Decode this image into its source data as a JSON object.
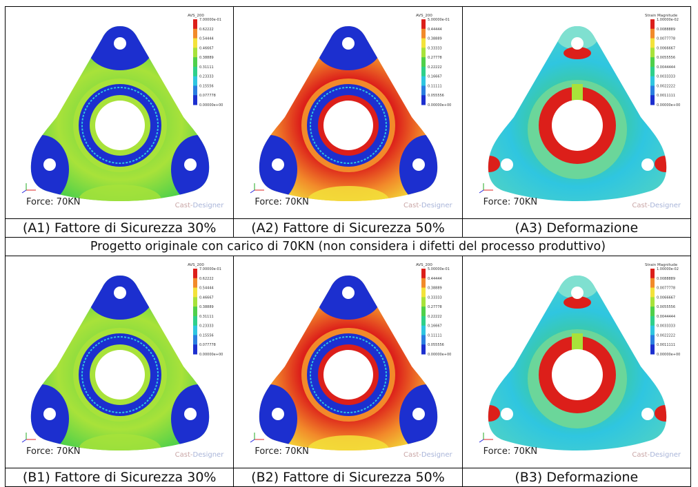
{
  "rows": [
    {
      "id": "A",
      "panels": [
        {
          "caption": "(A1) Fattore di Sicurezza 30%",
          "force": "Force: 70KN",
          "brand": "Cast-Designer",
          "legend_title": "AVS_200",
          "legend_values": [
            "7.00000e-01",
            "0.62222",
            "0.54444",
            "0.46667",
            "0.38889",
            "0.31111",
            "0.23333",
            "0.15556",
            "0.077778",
            "0.00000e+00"
          ],
          "variant": "sf30"
        },
        {
          "caption": "(A2) Fattore di Sicurezza 50%",
          "force": "Force: 70KN",
          "brand": "Cast-Designer",
          "legend_title": "AVS_200",
          "legend_values": [
            "5.00000e-01",
            "0.44444",
            "0.38889",
            "0.33333",
            "0.27778",
            "0.22222",
            "0.16667",
            "0.11111",
            "0.055556",
            "0.00000e+00"
          ],
          "variant": "sf50"
        },
        {
          "caption": "(A3) Deformazione",
          "force": "Force: 70KN",
          "brand": "Cast-Designer",
          "legend_title": "Strain  Magnitude",
          "legend_values": [
            "1.00000e-02",
            "0.0088889",
            "0.0077778",
            "0.0066667",
            "0.0055556",
            "0.0044444",
            "0.0033333",
            "0.0022222",
            "0.0011111",
            "0.00000e+00"
          ],
          "variant": "strain"
        }
      ]
    },
    {
      "id": "B",
      "panels": [
        {
          "caption": "(B1) Fattore di Sicurezza 30%",
          "force": "Force: 70KN",
          "brand": "Cast-Designer",
          "legend_title": "AVS_200",
          "legend_values": [
            "7.00000e-01",
            "0.62222",
            "0.54444",
            "0.46667",
            "0.38889",
            "0.31111",
            "0.23333",
            "0.15556",
            "0.077778",
            "0.00000e+00"
          ],
          "variant": "sf30"
        },
        {
          "caption": "(B2) Fattore di Sicurezza 50%",
          "force": "Force: 70KN",
          "brand": "Cast-Designer",
          "legend_title": "AVS_200",
          "legend_values": [
            "5.00000e-01",
            "0.44444",
            "0.38889",
            "0.33333",
            "0.27778",
            "0.22222",
            "0.16667",
            "0.11111",
            "0.055556",
            "0.00000e+00"
          ],
          "variant": "sf50"
        },
        {
          "caption": "(B3) Deformazione",
          "force": "Force: 70KN",
          "brand": "Cast-Designer",
          "legend_title": "Strain  Magnitude",
          "legend_values": [
            "1.00000e-02",
            "0.0088889",
            "0.0077778",
            "0.0066667",
            "0.0055556",
            "0.0044444",
            "0.0033333",
            "0.0022222",
            "0.0011111",
            "0.00000e+00"
          ],
          "variant": "strain"
        }
      ]
    }
  ],
  "banner": "Progetto originale con carico di 70KN (non considera i difetti del processo produttivo)",
  "colors": {
    "blue": "#1c2fcf",
    "cyan": "#2fc6e0",
    "green": "#4fd04a",
    "lime": "#a8e23a",
    "yellow": "#f3e23a",
    "orange": "#f28a2a",
    "red": "#dc1f1a"
  }
}
